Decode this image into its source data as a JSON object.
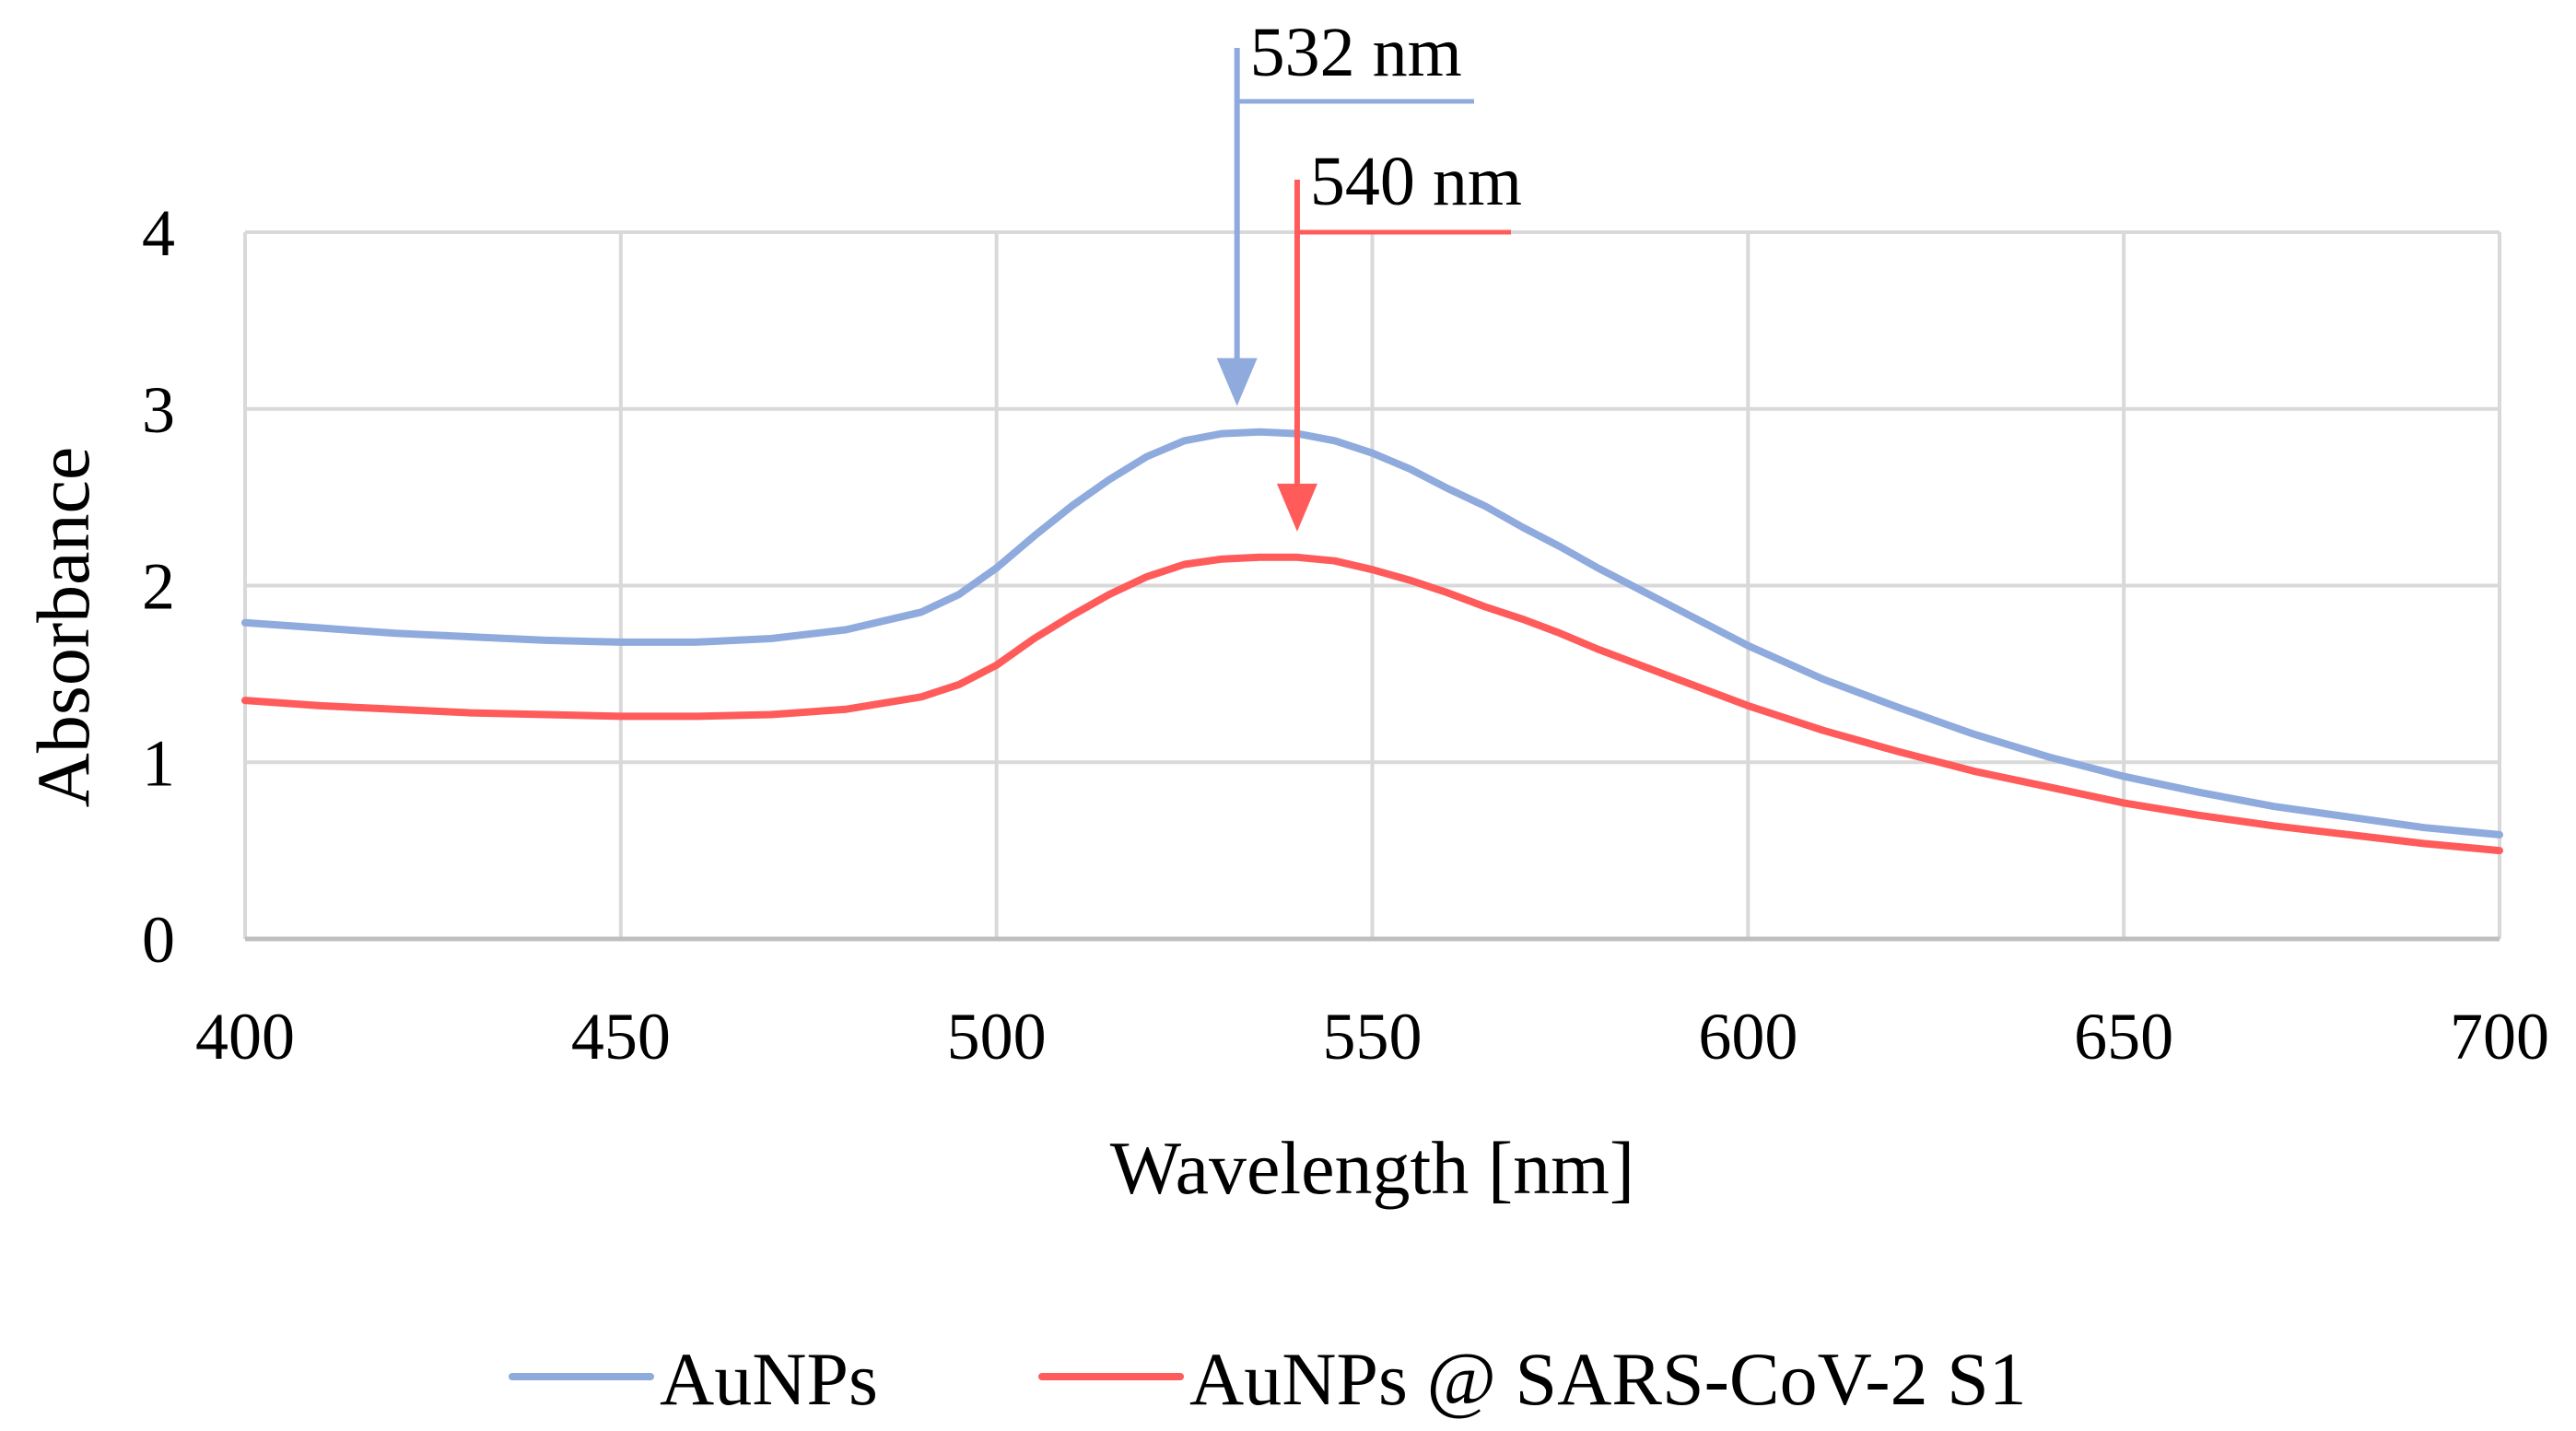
{
  "chart_data": {
    "type": "line",
    "title": "",
    "xlabel": "Wavelength [nm]",
    "ylabel": "Absorbance",
    "xlim": [
      400,
      700
    ],
    "ylim": [
      0,
      4
    ],
    "xticks": [
      400,
      450,
      500,
      550,
      600,
      650,
      700
    ],
    "yticks": [
      0,
      1,
      2,
      3,
      4
    ],
    "xtick_labels": [
      "400",
      "450",
      "500",
      "550",
      "600",
      "650",
      "700"
    ],
    "ytick_labels": [
      "0",
      "1",
      "2",
      "3",
      "4"
    ],
    "grid": true,
    "legend_position": "bottom",
    "series": [
      {
        "name": "AuNPs",
        "color": "#8FAADC",
        "x": [
          400,
          410,
          420,
          430,
          440,
          450,
          460,
          470,
          480,
          485,
          490,
          495,
          500,
          505,
          510,
          515,
          520,
          525,
          530,
          535,
          540,
          545,
          550,
          555,
          560,
          565,
          570,
          575,
          580,
          590,
          600,
          610,
          620,
          630,
          640,
          650,
          660,
          670,
          680,
          690,
          700
        ],
        "y": [
          1.79,
          1.76,
          1.73,
          1.71,
          1.69,
          1.68,
          1.68,
          1.7,
          1.75,
          1.8,
          1.85,
          1.95,
          2.1,
          2.28,
          2.45,
          2.6,
          2.73,
          2.82,
          2.86,
          2.87,
          2.86,
          2.82,
          2.75,
          2.66,
          2.55,
          2.45,
          2.33,
          2.22,
          2.1,
          1.88,
          1.66,
          1.47,
          1.31,
          1.16,
          1.03,
          0.92,
          0.83,
          0.75,
          0.69,
          0.63,
          0.59
        ]
      },
      {
        "name": "AuNPs @ SARS-CoV-2 S1",
        "color": "#FF5B5B",
        "x": [
          400,
          410,
          420,
          430,
          440,
          450,
          460,
          470,
          480,
          490,
          495,
          500,
          505,
          510,
          515,
          520,
          525,
          530,
          535,
          540,
          545,
          550,
          555,
          560,
          565,
          570,
          575,
          580,
          590,
          600,
          610,
          620,
          630,
          640,
          650,
          660,
          670,
          680,
          690,
          700
        ],
        "y": [
          1.35,
          1.32,
          1.3,
          1.28,
          1.27,
          1.26,
          1.26,
          1.27,
          1.3,
          1.37,
          1.44,
          1.55,
          1.7,
          1.83,
          1.95,
          2.05,
          2.12,
          2.15,
          2.16,
          2.16,
          2.14,
          2.09,
          2.03,
          1.96,
          1.88,
          1.81,
          1.73,
          1.64,
          1.48,
          1.32,
          1.18,
          1.06,
          0.95,
          0.86,
          0.77,
          0.7,
          0.64,
          0.59,
          0.54,
          0.5
        ]
      }
    ],
    "annotations": [
      {
        "label": "532 nm",
        "x": 532,
        "y": 2.87,
        "color": "#8FAADC"
      },
      {
        "label": "540 nm",
        "x": 540,
        "y": 2.16,
        "color": "#FF5B5B"
      }
    ]
  }
}
